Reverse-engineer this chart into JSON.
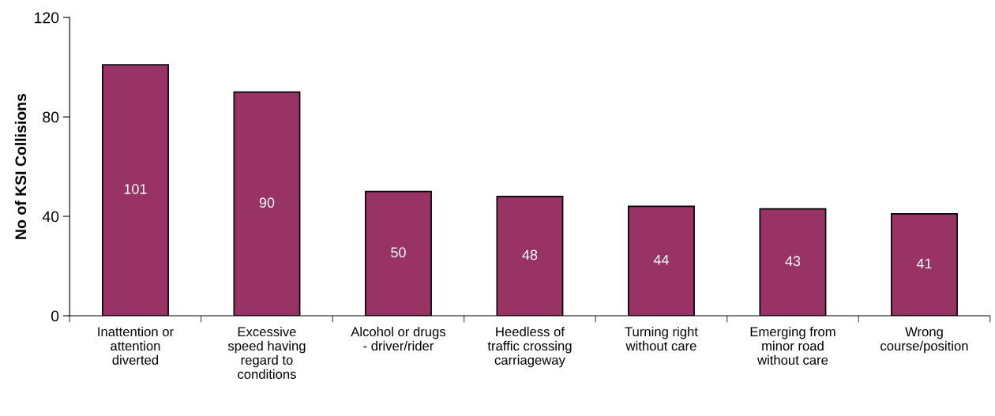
{
  "chart_data": {
    "type": "bar",
    "ylabel": "No of KSI Collisions",
    "categories": [
      "Inattention or\nattention\ndiverted",
      "Excessive\nspeed having\nregard to\nconditions",
      "Alcohol or drugs\n- driver/rider",
      "Heedless of\ntraffic crossing\ncarriageway",
      "Turning right\nwithout care",
      "Emerging from\nminor road\nwithout care",
      "Wrong\ncourse/position"
    ],
    "values": [
      101,
      90,
      50,
      48,
      44,
      43,
      41
    ],
    "color": "#993366",
    "ylim": [
      0,
      120
    ],
    "yticks": [
      0,
      40,
      80,
      120
    ],
    "grid": false,
    "data_labels": true
  }
}
